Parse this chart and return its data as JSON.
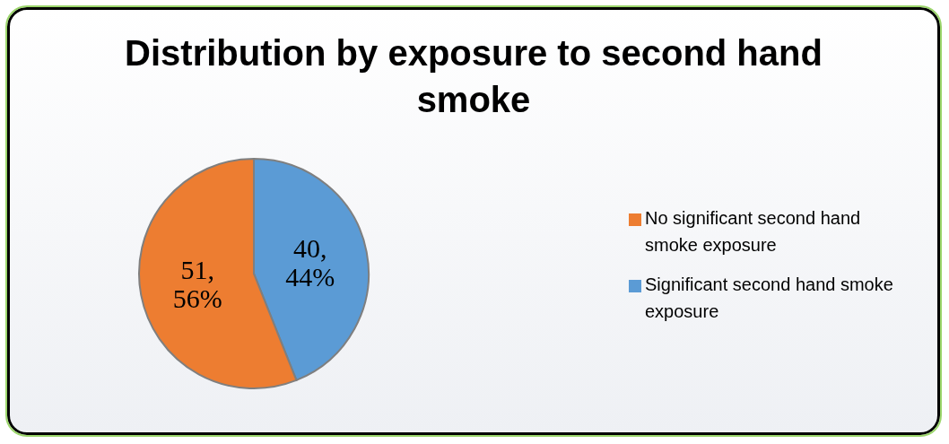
{
  "chart_data": {
    "type": "pie",
    "title": "Distribution by exposure to second hand smoke",
    "categories": [
      "Significant second hand smoke exposure",
      "No significant second hand smoke exposure"
    ],
    "values": [
      40,
      51
    ],
    "colors": [
      "#5b9bd5",
      "#ed7d31"
    ],
    "value_labels": [
      "40, 44%",
      "51, 56%"
    ],
    "legend": "right"
  }
}
